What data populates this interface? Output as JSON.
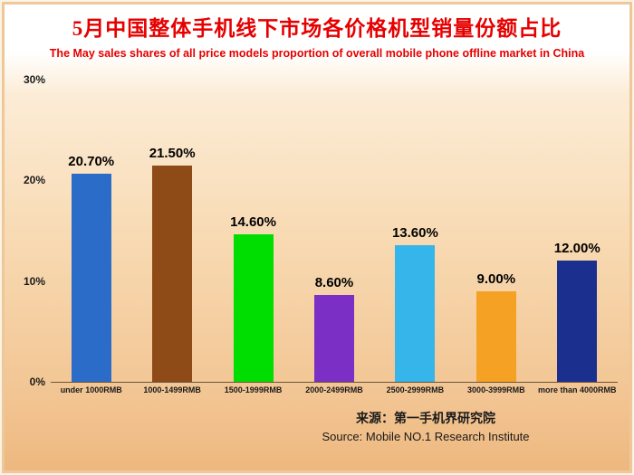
{
  "title_zh": "5月中国整体手机线下市场各价格机型销量份额占比",
  "title_en": "The May sales shares of all price models proportion of overall mobile phone offline market in China",
  "source_zh": "来源：第一手机界研究院",
  "source_en": "Source: Mobile NO.1 Research Institute",
  "chart_data": {
    "type": "bar",
    "title": "5月中国整体手机线下市场各价格机型销量份额占比",
    "subtitle": "The May sales shares of all price models proportion of overall mobile phone offline market in China",
    "categories": [
      "under 1000RMB",
      "1000-1499RMB",
      "1500-1999RMB",
      "2000-2499RMB",
      "2500-2999RMB",
      "3000-3999RMB",
      "more than 4000RMB"
    ],
    "values": [
      20.7,
      21.5,
      14.6,
      8.6,
      13.6,
      9.0,
      12.0
    ],
    "value_labels": [
      "20.70%",
      "21.50%",
      "14.60%",
      "8.60%",
      "13.60%",
      "9.00%",
      "12.00%"
    ],
    "bar_colors": [
      "#2b6cc8",
      "#8e4a17",
      "#00dd00",
      "#7b2fc4",
      "#35b5ea",
      "#f5a123",
      "#1b2f8f"
    ],
    "xlabel": "",
    "ylabel": "",
    "ylim": [
      0,
      30
    ],
    "yticks": [
      {
        "value": 0,
        "label": "0%"
      },
      {
        "value": 10,
        "label": "10%"
      },
      {
        "value": 20,
        "label": "20%"
      },
      {
        "value": 30,
        "label": "30%"
      }
    ],
    "grid": false,
    "legend": false,
    "background_accent": "#f8dab3",
    "title_color": "#e60000"
  }
}
